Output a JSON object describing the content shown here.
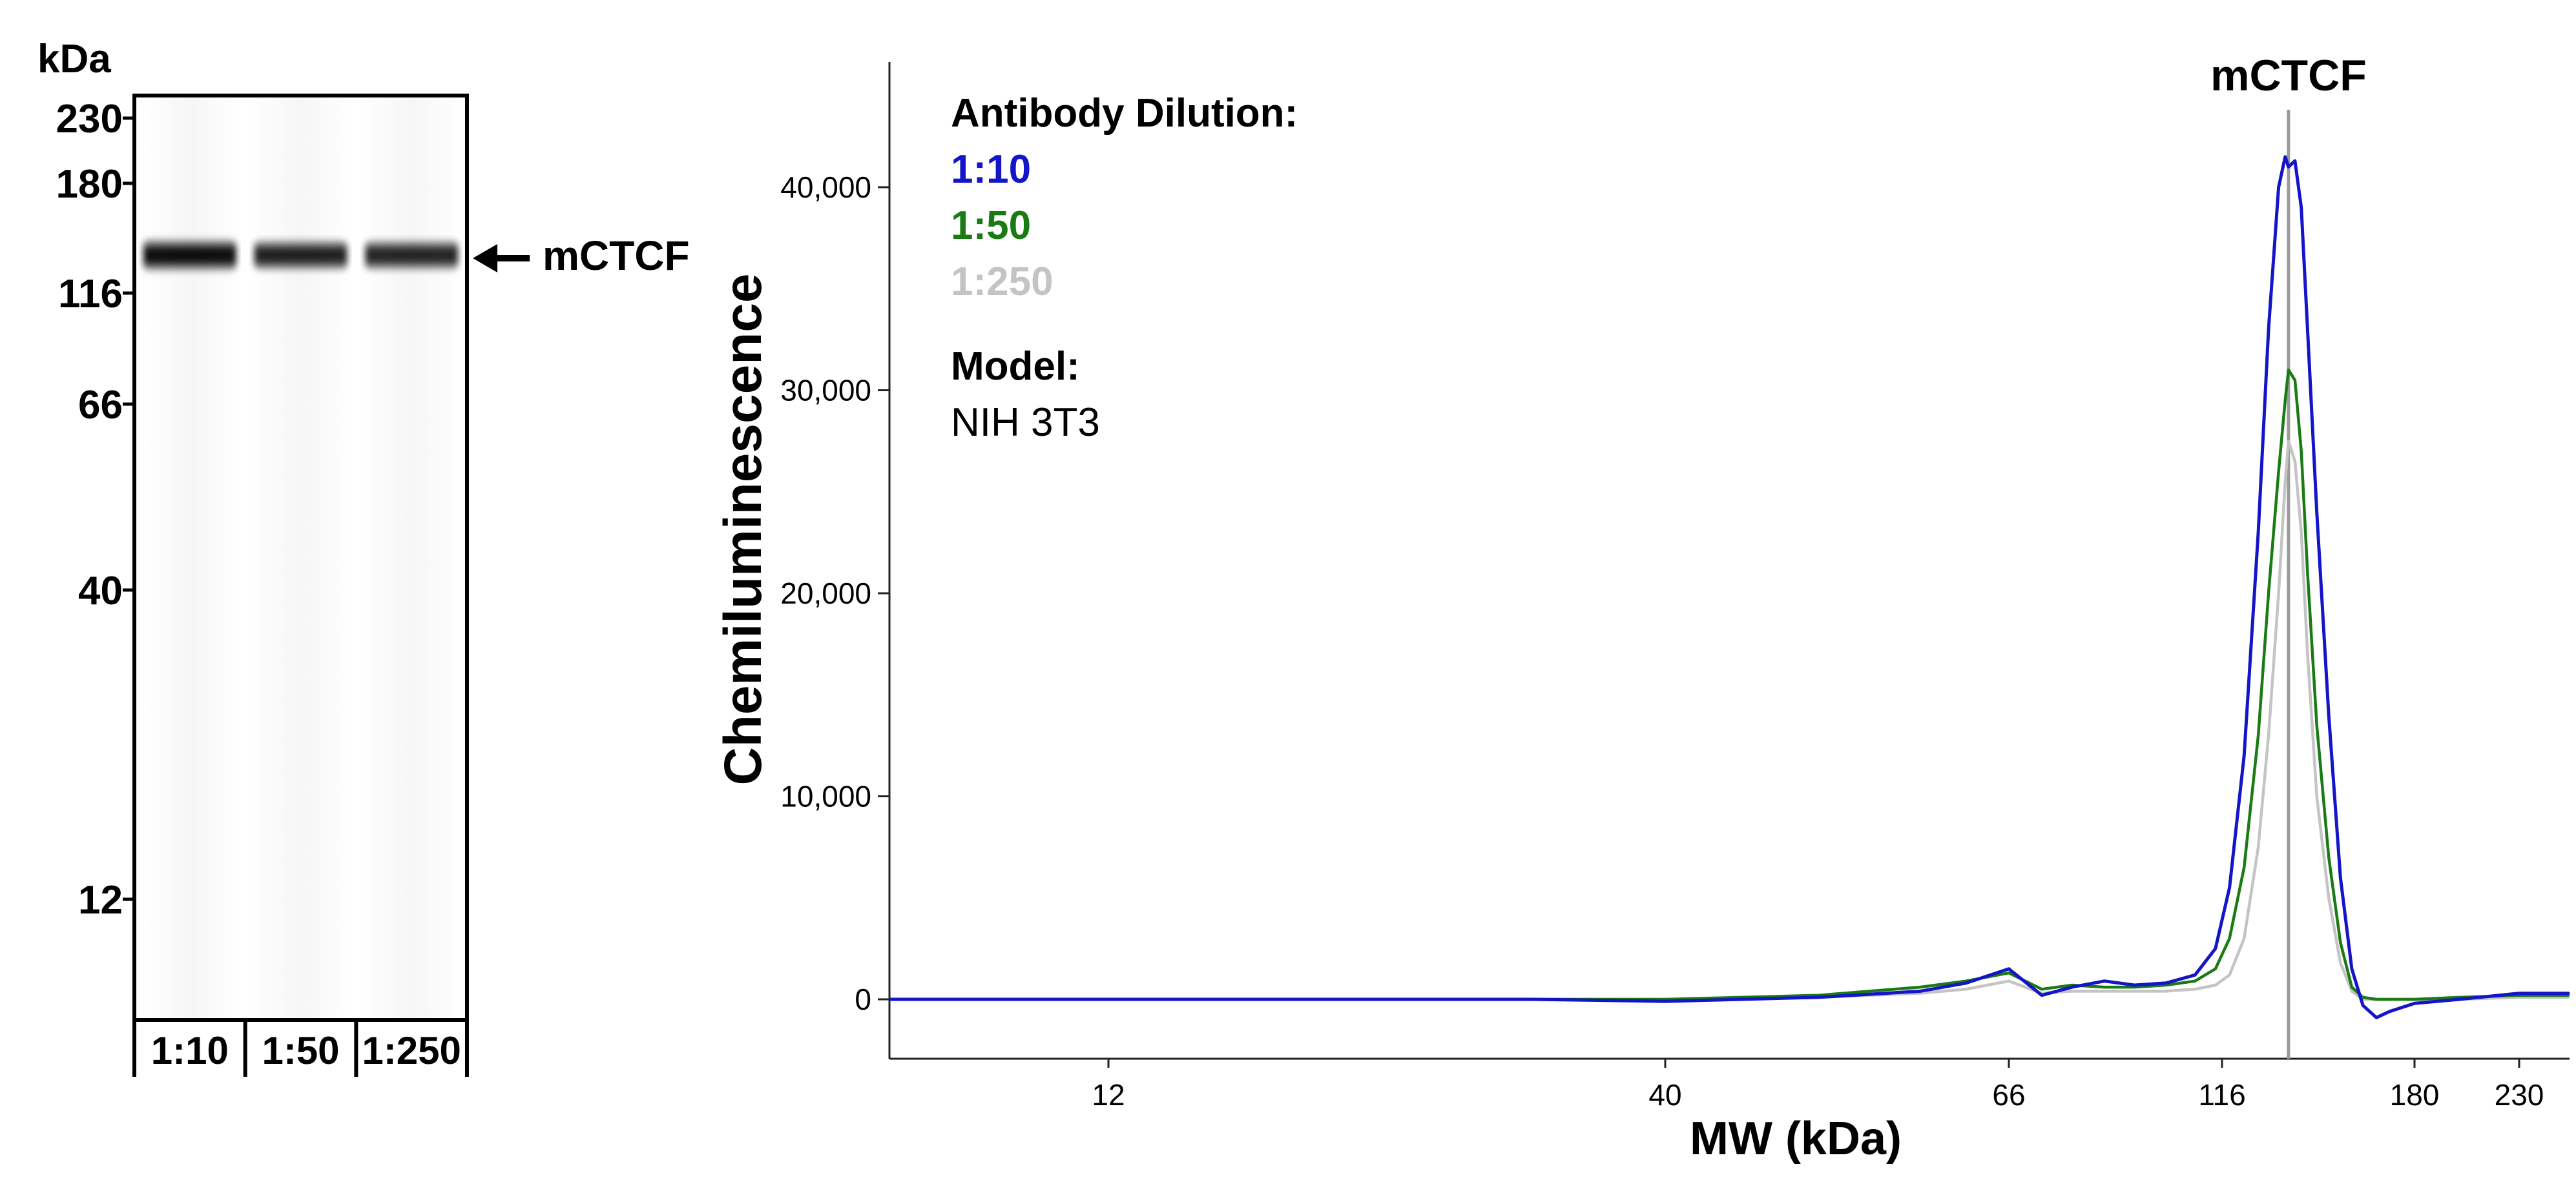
{
  "colors": {
    "series_1_10": "#1414c8",
    "series_1_50": "#1a7a14",
    "series_1_250": "#c4c4c4",
    "axis": "#222222",
    "marker_line": "#9a9a9a"
  },
  "chart_data": [
    {
      "type": "gel",
      "unit_label": "kDa",
      "marker_labels": [
        "230",
        "180",
        "116",
        "66",
        "40",
        "12"
      ],
      "lanes": [
        "1:10",
        "1:50",
        "1:250"
      ],
      "band_intensity": [
        1.0,
        0.82,
        0.78
      ],
      "band_label": "mCTCF"
    },
    {
      "type": "line",
      "peak_label": "mCTCF",
      "xlabel": "MW (kDa)",
      "ylabel": "Chemiluminescence",
      "x_scale": "log",
      "x_ticks": [
        "12",
        "40",
        "66",
        "116",
        "180",
        "230"
      ],
      "y_ticks": [
        "0",
        "10,000",
        "20,000",
        "30,000",
        "40,000"
      ],
      "ylim": [
        -3000,
        46000
      ],
      "peak_x": 135,
      "legend": {
        "title": "Antibody Dilution:",
        "entries": [
          "1:10",
          "1:50",
          "1:250"
        ],
        "model_title": "Model:",
        "model_value": "NIH 3T3"
      },
      "series": [
        {
          "name": "1:10",
          "x": [
            7,
            10,
            15,
            20,
            30,
            40,
            50,
            58,
            62,
            66,
            72,
            78,
            85,
            92,
            100,
            108,
            114,
            118,
            122,
            126,
            129,
            132,
            134,
            135,
            137,
            139,
            141,
            144,
            148,
            152,
            156,
            160,
            165,
            170,
            180,
            200,
            230,
            260
          ],
          "y": [
            0,
            0,
            0,
            0,
            0,
            -100,
            100,
            400,
            800,
            1500,
            200,
            600,
            900,
            700,
            800,
            1200,
            2500,
            5500,
            12000,
            23000,
            33000,
            40000,
            41500,
            41000,
            41300,
            39000,
            33000,
            24000,
            14000,
            6000,
            1500,
            -300,
            -900,
            -600,
            -200,
            0,
            300,
            300
          ]
        },
        {
          "name": "1:50",
          "x": [
            7,
            10,
            15,
            20,
            30,
            40,
            50,
            58,
            62,
            66,
            72,
            78,
            85,
            92,
            100,
            108,
            114,
            118,
            122,
            126,
            129,
            132,
            134,
            135,
            137,
            139,
            141,
            144,
            148,
            152,
            156,
            160,
            165,
            170,
            180,
            200,
            230,
            260
          ],
          "y": [
            0,
            0,
            0,
            0,
            0,
            0,
            200,
            600,
            900,
            1300,
            500,
            700,
            600,
            600,
            700,
            900,
            1500,
            3000,
            6500,
            13000,
            20000,
            26000,
            29500,
            31000,
            30500,
            27000,
            21000,
            13500,
            7000,
            2800,
            600,
            100,
            0,
            0,
            0,
            100,
            200,
            200
          ]
        },
        {
          "name": "1:250",
          "x": [
            7,
            10,
            15,
            20,
            30,
            40,
            50,
            58,
            62,
            66,
            72,
            78,
            85,
            92,
            100,
            108,
            114,
            118,
            122,
            126,
            129,
            132,
            134,
            135,
            137,
            139,
            141,
            144,
            148,
            152,
            156,
            160,
            165,
            170,
            180,
            200,
            230,
            260
          ],
          "y": [
            0,
            0,
            0,
            0,
            0,
            0,
            100,
            300,
            500,
            900,
            300,
            400,
            400,
            400,
            400,
            500,
            700,
            1200,
            3000,
            7500,
            13000,
            20000,
            25500,
            27500,
            26500,
            23000,
            17000,
            10000,
            5000,
            1800,
            400,
            0,
            0,
            0,
            0,
            0,
            100,
            100
          ]
        }
      ]
    }
  ]
}
